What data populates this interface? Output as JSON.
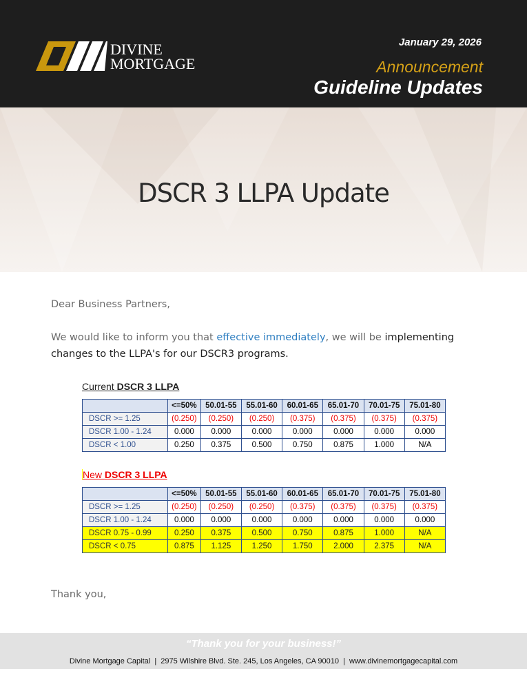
{
  "header": {
    "logo_line1": "DIVINE",
    "logo_line2": "MORTGAGE",
    "date": "January 29, 2026",
    "kicker": "Announcement",
    "title": "Guideline Updates",
    "colors": {
      "gold": "#d4a017",
      "bg": "#1e1e1e"
    }
  },
  "hero": {
    "title": "DSCR 3 LLPA Update"
  },
  "letter": {
    "greeting": "Dear Business Partners,",
    "p1_a": "We would like to inform you that ",
    "p1_b": "effective immediately",
    "p1_c": ", we will be ",
    "p1_d": "implementing changes to the LLPA's for our DSCR3 programs.",
    "closing": "Thank you,"
  },
  "current": {
    "title_a": "Current ",
    "title_b": "DSCR 3 LLPA",
    "columns": [
      "",
      "<=50%",
      "50.01-55",
      "55.01-60",
      "60.01-65",
      "65.01-70",
      "70.01-75",
      "75.01-80"
    ],
    "rows": [
      {
        "label": "DSCR >= 1.25",
        "values": [
          "(0.250)",
          "(0.250)",
          "(0.250)",
          "(0.375)",
          "(0.375)",
          "(0.375)",
          "(0.375)"
        ]
      },
      {
        "label": "DSCR 1.00 - 1.24",
        "values": [
          "0.000",
          "0.000",
          "0.000",
          "0.000",
          "0.000",
          "0.000",
          "0.000"
        ]
      },
      {
        "label": "DSCR < 1.00",
        "values": [
          "0.250",
          "0.375",
          "0.500",
          "0.750",
          "0.875",
          "1.000",
          "N/A"
        ]
      }
    ]
  },
  "new": {
    "title_a": "New ",
    "title_b": "DSCR 3 LLPA",
    "columns": [
      "",
      "<=50%",
      "50.01-55",
      "55.01-60",
      "60.01-65",
      "65.01-70",
      "70.01-75",
      "75.01-80"
    ],
    "rows": [
      {
        "label": "DSCR >= 1.25",
        "values": [
          "(0.250)",
          "(0.250)",
          "(0.250)",
          "(0.375)",
          "(0.375)",
          "(0.375)",
          "(0.375)"
        ]
      },
      {
        "label": "DSCR 1.00 - 1.24",
        "values": [
          "0.000",
          "0.000",
          "0.000",
          "0.000",
          "0.000",
          "0.000",
          "0.000"
        ]
      },
      {
        "label": "DSCR 0.75 - 0.99",
        "values": [
          "0.250",
          "0.375",
          "0.500",
          "0.750",
          "0.875",
          "1.000",
          "N/A"
        ],
        "highlight": true
      },
      {
        "label": "DSCR < 0.75",
        "values": [
          "0.875",
          "1.125",
          "1.250",
          "1.750",
          "2.000",
          "2.375",
          "N/A"
        ],
        "highlight": true
      }
    ]
  },
  "footer": {
    "quote": "“Thank you for your business!”",
    "address": "Divine Mortgage Capital  |  2975 Wilshire Blvd. Ste. 245, Los Angeles, CA 90010  |  www.divinemortgagecapital.com"
  }
}
